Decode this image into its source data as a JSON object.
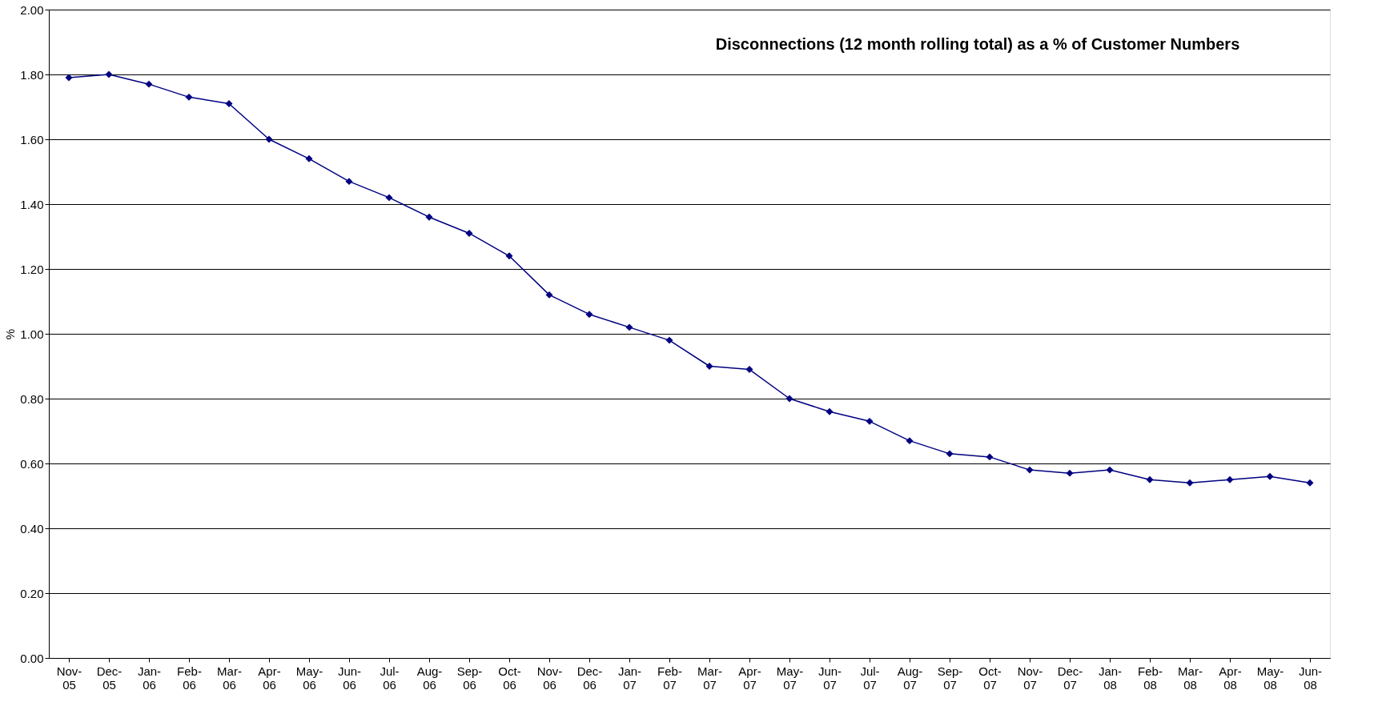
{
  "chart_data": {
    "type": "line",
    "title": "Disconnections (12 month rolling total) as a % of Customer Numbers",
    "ylabel": "%",
    "categories": [
      "Nov-05",
      "Dec-05",
      "Jan-06",
      "Feb-06",
      "Mar-06",
      "Apr-06",
      "May-06",
      "Jun-06",
      "Jul-06",
      "Aug-06",
      "Sep-06",
      "Oct-06",
      "Nov-06",
      "Dec-06",
      "Jan-07",
      "Feb-07",
      "Mar-07",
      "Apr-07",
      "May-07",
      "Jun-07",
      "Jul-07",
      "Aug-07",
      "Sep-07",
      "Oct-07",
      "Nov-07",
      "Dec-07",
      "Jan-08",
      "Feb-08",
      "Mar-08",
      "Apr-08",
      "May-08",
      "Jun-08"
    ],
    "series": [
      {
        "color": "#000080",
        "values": [
          1.79,
          1.8,
          1.77,
          1.73,
          1.71,
          1.6,
          1.54,
          1.47,
          1.42,
          1.36,
          1.31,
          1.24,
          1.12,
          1.06,
          1.02,
          0.98,
          0.9,
          0.89,
          0.8,
          0.76,
          0.73,
          0.67,
          0.63,
          0.62,
          0.58,
          0.57,
          0.58,
          0.55,
          0.54,
          0.55,
          0.56,
          0.54
        ]
      }
    ],
    "ylim": [
      0,
      2
    ],
    "yticks": [
      {
        "value": 0,
        "label": "0.00"
      },
      {
        "value": 0.2,
        "label": "0.20"
      },
      {
        "value": 0.4,
        "label": "0.40"
      },
      {
        "value": 0.6,
        "label": "0.60"
      },
      {
        "value": 0.8,
        "label": "0.80"
      },
      {
        "value": 1,
        "label": "1.00"
      },
      {
        "value": 1.2,
        "label": "1.20"
      },
      {
        "value": 1.4,
        "label": "1.40"
      },
      {
        "value": 1.6,
        "label": "1.60"
      },
      {
        "value": 1.8,
        "label": "1.80"
      },
      {
        "value": 2,
        "label": "2.00"
      }
    ],
    "grid": "y",
    "marker": "diamond",
    "line_style": "solid",
    "legend": false
  }
}
